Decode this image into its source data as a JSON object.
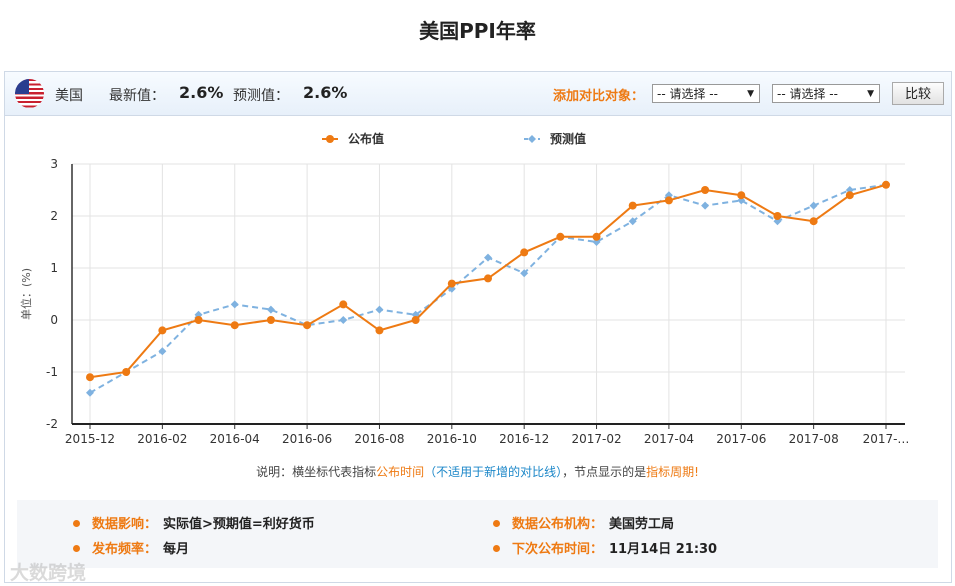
{
  "page": {
    "title": "美国PPI年率"
  },
  "topbar": {
    "country": "美国",
    "latest_label": "最新值：",
    "latest_value": "2.6%",
    "forecast_label": "预测值：",
    "forecast_value": "2.6%",
    "compare_label": "添加对比对象：",
    "select1": "-- 请选择 --",
    "select2": "-- 请选择 --",
    "compare_button": "比较",
    "flag_icon": "us-flag-icon"
  },
  "chart_data": {
    "type": "line",
    "x": [
      "2015-12",
      "2016-01",
      "2016-02",
      "2016-03",
      "2016-04",
      "2016-05",
      "2016-06",
      "2016-07",
      "2016-08",
      "2016-09",
      "2016-10",
      "2016-11",
      "2016-12",
      "2017-01",
      "2017-02",
      "2017-03",
      "2017-04",
      "2017-05",
      "2017-06",
      "2017-07",
      "2017-08",
      "2017-09",
      "2017-10"
    ],
    "x_tick_labels": [
      "2015-12",
      "2016-02",
      "2016-04",
      "2016-06",
      "2016-08",
      "2016-10",
      "2016-12",
      "2017-02",
      "2017-04",
      "2017-06",
      "2017-08",
      "2017-…"
    ],
    "ylabel": "单位：(%)",
    "ylim": [
      -2,
      3
    ],
    "yticks": [
      -2,
      -1,
      0,
      1,
      2,
      3
    ],
    "grid": true,
    "legend_position": "top-center",
    "series": [
      {
        "name": "公布值",
        "color": "#ee7a13",
        "style": "solid",
        "values": [
          -1.1,
          -1.0,
          -0.2,
          0.0,
          -0.1,
          0.0,
          -0.1,
          0.3,
          -0.2,
          0.0,
          0.7,
          0.8,
          1.3,
          1.6,
          1.6,
          2.2,
          2.3,
          2.5,
          2.4,
          2.0,
          1.9,
          2.4,
          2.6
        ]
      },
      {
        "name": "预测值",
        "color": "#7fb2e0",
        "style": "dashed",
        "values": [
          -1.4,
          -1.0,
          -0.6,
          0.1,
          0.3,
          0.2,
          -0.1,
          0.0,
          0.2,
          0.1,
          0.6,
          1.2,
          0.9,
          1.6,
          1.5,
          1.9,
          2.4,
          2.2,
          2.3,
          1.9,
          2.2,
          2.5,
          2.6
        ]
      }
    ]
  },
  "note": {
    "prefix": "说明：横坐标代表指标",
    "hl1": "公布时间",
    "hl2": "（不适用于新增的对比线）",
    "mid": "，节点显示的是",
    "hl3": "指标周期!"
  },
  "info": {
    "impact_label": "数据影响：",
    "impact_value": "实际值>预期值=利好货币",
    "freq_label": "发布频率：",
    "freq_value": "每月",
    "agency_label": "数据公布机构：",
    "agency_value": "美国劳工局",
    "next_label": "下次公布时间：",
    "next_value": "11月14日 21:30"
  },
  "watermark": "大数跨境"
}
